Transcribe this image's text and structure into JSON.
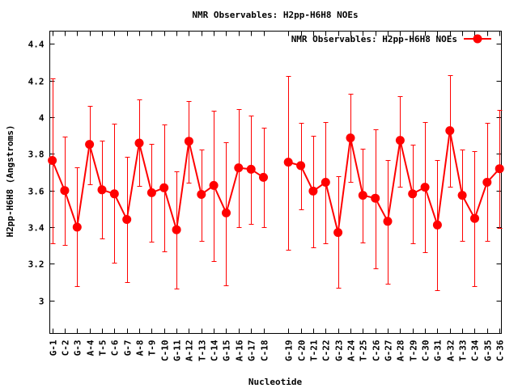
{
  "chart_data": {
    "type": "line",
    "title": "NMR Observables: H2pp-H6H8 NOEs",
    "xlabel": "Nucleotide",
    "ylabel": "H2pp-H6H8 (Angstroms)",
    "xlim": [
      0.8,
      37.15
    ],
    "ylim": [
      2.82,
      4.47
    ],
    "yticks": [
      "3",
      "3.2",
      "3.4",
      "3.6",
      "3.8",
      "4",
      "4.2",
      "4.4"
    ],
    "ytick_values": [
      3.0,
      3.2,
      3.4,
      3.6,
      3.8,
      4.0,
      4.2,
      4.4
    ],
    "grid": false,
    "legend": {
      "position": "top-right",
      "entries": [
        "NMR Observables: H2pp-H6H8 NOEs"
      ]
    },
    "series_color": "#ff0000",
    "categories": [
      "G-1",
      "C-2",
      "G-3",
      "A-4",
      "T-5",
      "C-6",
      "G-7",
      "A-8",
      "T-9",
      "C-10",
      "G-11",
      "A-12",
      "T-13",
      "C-14",
      "G-15",
      "A-16",
      "G-17",
      "C-18",
      "G-19",
      "C-20",
      "T-21",
      "C-22",
      "G-23",
      "A-24",
      "T-25",
      "C-26",
      "G-27",
      "A-28",
      "T-29",
      "C-30",
      "G-31",
      "A-32",
      "T-33",
      "C-34",
      "G-35",
      "C-36"
    ],
    "x": [
      1,
      2,
      3,
      4,
      5,
      6,
      7,
      8,
      9,
      10,
      11,
      12,
      13,
      14,
      15,
      16,
      17,
      18,
      20,
      21,
      22,
      23,
      24,
      25,
      26,
      27,
      28,
      29,
      30,
      31,
      32,
      33,
      34,
      35,
      36,
      37
    ],
    "series": [
      {
        "name": "NMR Observables: H2pp-H6H8 NOEs",
        "values": [
          3.764,
          3.6,
          3.4,
          3.852,
          3.604,
          3.582,
          3.442,
          3.859,
          3.588,
          3.615,
          3.386,
          3.869,
          3.579,
          3.628,
          3.478,
          3.724,
          3.716,
          3.672,
          3.755,
          3.736,
          3.597,
          3.645,
          3.371,
          3.887,
          3.574,
          3.558,
          3.432,
          3.874,
          3.582,
          3.618,
          3.412,
          3.927,
          3.574,
          3.448,
          3.645,
          3.719
        ],
        "upper": [
          4.21,
          3.895,
          3.727,
          4.06,
          3.871,
          3.964,
          3.784,
          4.096,
          3.855,
          3.962,
          3.704,
          4.09,
          3.825,
          4.035,
          3.864,
          4.044,
          4.009,
          3.943,
          4.227,
          3.971,
          3.9,
          3.975,
          3.679,
          4.127,
          3.83,
          3.934,
          3.767,
          4.116,
          3.848,
          3.972,
          3.766,
          4.23,
          3.823,
          3.813,
          3.968,
          4.042
        ],
        "lower": [
          3.314,
          3.305,
          3.077,
          3.635,
          3.34,
          3.204,
          3.099,
          3.626,
          3.32,
          3.266,
          3.064,
          3.644,
          3.327,
          3.213,
          3.081,
          3.402,
          3.42,
          3.402,
          3.275,
          3.499,
          3.288,
          3.314,
          3.068,
          3.648,
          3.318,
          3.174,
          3.09,
          3.622,
          3.314,
          3.262,
          3.055,
          3.622,
          3.323,
          3.077,
          3.323,
          3.395
        ]
      }
    ]
  }
}
